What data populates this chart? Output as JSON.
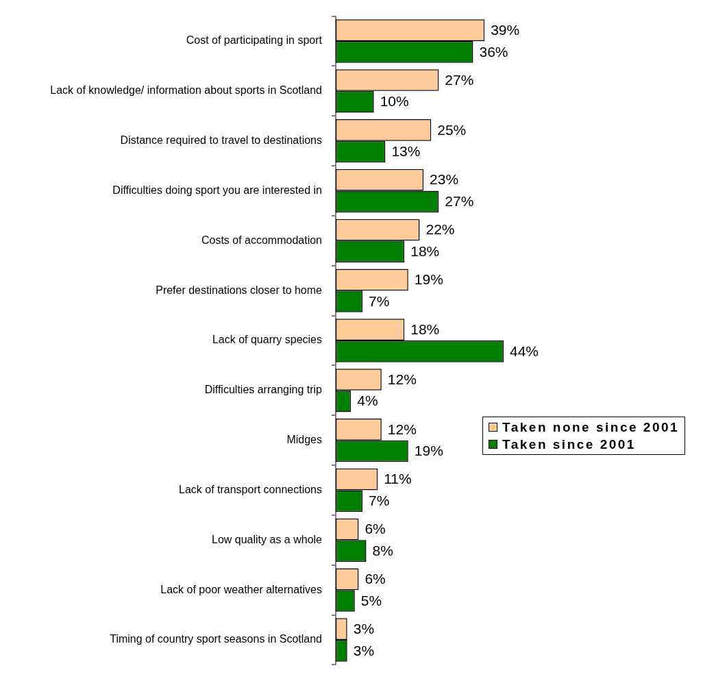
{
  "chart_data": {
    "type": "bar",
    "orientation": "horizontal",
    "categories": [
      "Cost of participating in sport",
      "Lack of knowledge/ information about sports in Scotland",
      "Distance required to travel to destinations",
      "Difficulties doing sport you are interested in",
      "Costs of accommodation",
      "Prefer destinations closer to home",
      "Lack of quarry species",
      "Difficulties arranging trip",
      "Midges",
      "Lack of transport connections",
      "Low quality as a whole",
      "Lack of poor weather alternatives",
      "Timing of country sport seasons in Scotland"
    ],
    "series": [
      {
        "name": "Taken none since 2001",
        "color": "#ffcc99",
        "values": [
          39,
          27,
          25,
          23,
          22,
          19,
          18,
          12,
          12,
          11,
          6,
          6,
          3
        ],
        "value_labels": [
          "39%",
          "27%",
          "25%",
          "23%",
          "22%",
          "19%",
          "18%",
          "12%",
          "12%",
          "11%",
          "6%",
          "6%",
          "3%"
        ]
      },
      {
        "name": "Taken since 2001",
        "color": "#008000",
        "values": [
          36,
          10,
          13,
          27,
          18,
          7,
          44,
          4,
          19,
          7,
          8,
          5,
          3
        ],
        "value_labels": [
          "36%",
          "10%",
          "13%",
          "27%",
          "18%",
          "7%",
          "44%",
          "4%",
          "19%",
          "7%",
          "8%",
          "5%",
          "3%"
        ]
      }
    ],
    "tick_labels": "y",
    "grid": false,
    "legend": "right"
  }
}
